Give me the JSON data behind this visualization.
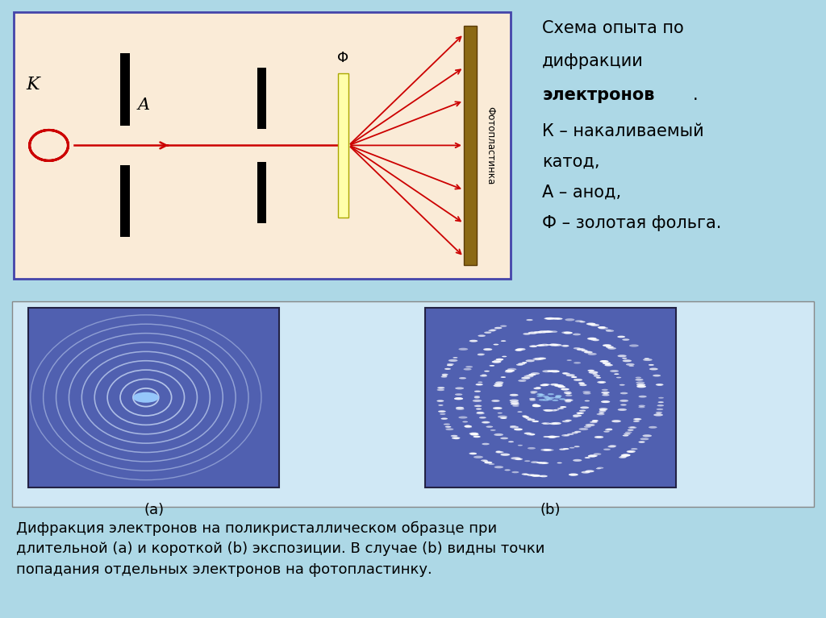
{
  "bg_color": "#add8e6",
  "top_panel_bg": "#faebd7",
  "top_panel_border": "#4444aa",
  "bottom_panel_bg": "#cce0f0",
  "label_a": "(a)",
  "label_b": "(b)",
  "panel_bg": "#5566aa",
  "foil_color": "#ffffaa",
  "photoplastic_color": "#8B6914",
  "arrow_color": "#cc0000",
  "slit_color": "#111111",
  "label_K": "K",
  "label_A": "A",
  "label_Phi": "Φ",
  "label_Fotoplastinka": "Фотопластинка",
  "text_line1": "Схема опыта по",
  "text_line2": "дифракции",
  "text_line3_normal": "",
  "text_line3_bold": "электронов",
  "text_line3_dot": ".",
  "text_line4": "К – накаливаемый",
  "text_line5": "катод,",
  "text_line6": "А – анод,",
  "text_line7": "Ф – золотая фольга.",
  "caption_line1": "Дифракция электронов на поликристаллическом образце при",
  "caption_line2": "длительной (a) и короткой (b) экспозиции. В случае (b) видны точки",
  "caption_line3": "попадания отдельных электронов на фотопластинку."
}
